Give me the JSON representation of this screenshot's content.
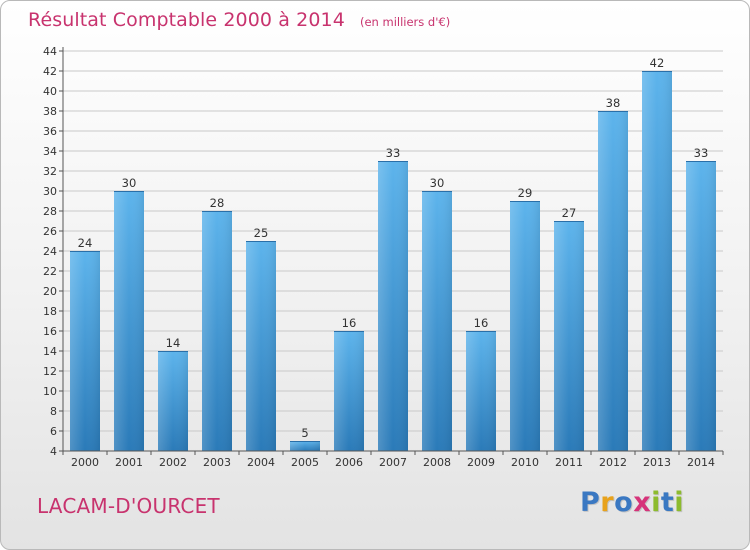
{
  "title": "Résultat Comptable 2000 à 2014",
  "subtitle": "(en milliers d'€)",
  "location": "LACAM-D'OURCET",
  "logo": {
    "letters": [
      "P",
      "r",
      "o",
      "x",
      "i",
      "t",
      "i"
    ],
    "colors": [
      "#3a78c2",
      "#e8a21c",
      "#3a78c2",
      "#d6337a",
      "#8dbb2e",
      "#3a78c2",
      "#8dbb2e"
    ]
  },
  "colors": {
    "title": "#c8336e",
    "bar_light": "#5db4ec",
    "bar_dark": "#2a7ab8"
  },
  "chart_data": {
    "type": "bar",
    "title": "Résultat Comptable 2000 à 2014",
    "xlabel": "",
    "ylabel": "",
    "categories": [
      "2000",
      "2001",
      "2002",
      "2003",
      "2004",
      "2005",
      "2006",
      "2007",
      "2008",
      "2009",
      "2010",
      "2011",
      "2012",
      "2013",
      "2014"
    ],
    "values": [
      24,
      30,
      14,
      28,
      25,
      5,
      16,
      33,
      30,
      16,
      29,
      27,
      38,
      42,
      33
    ],
    "ylim": [
      4,
      44
    ],
    "yticks": [
      4,
      6,
      8,
      10,
      12,
      14,
      16,
      18,
      20,
      22,
      24,
      26,
      28,
      30,
      32,
      34,
      36,
      38,
      40,
      42,
      44
    ],
    "grid": true,
    "legend": "none"
  }
}
